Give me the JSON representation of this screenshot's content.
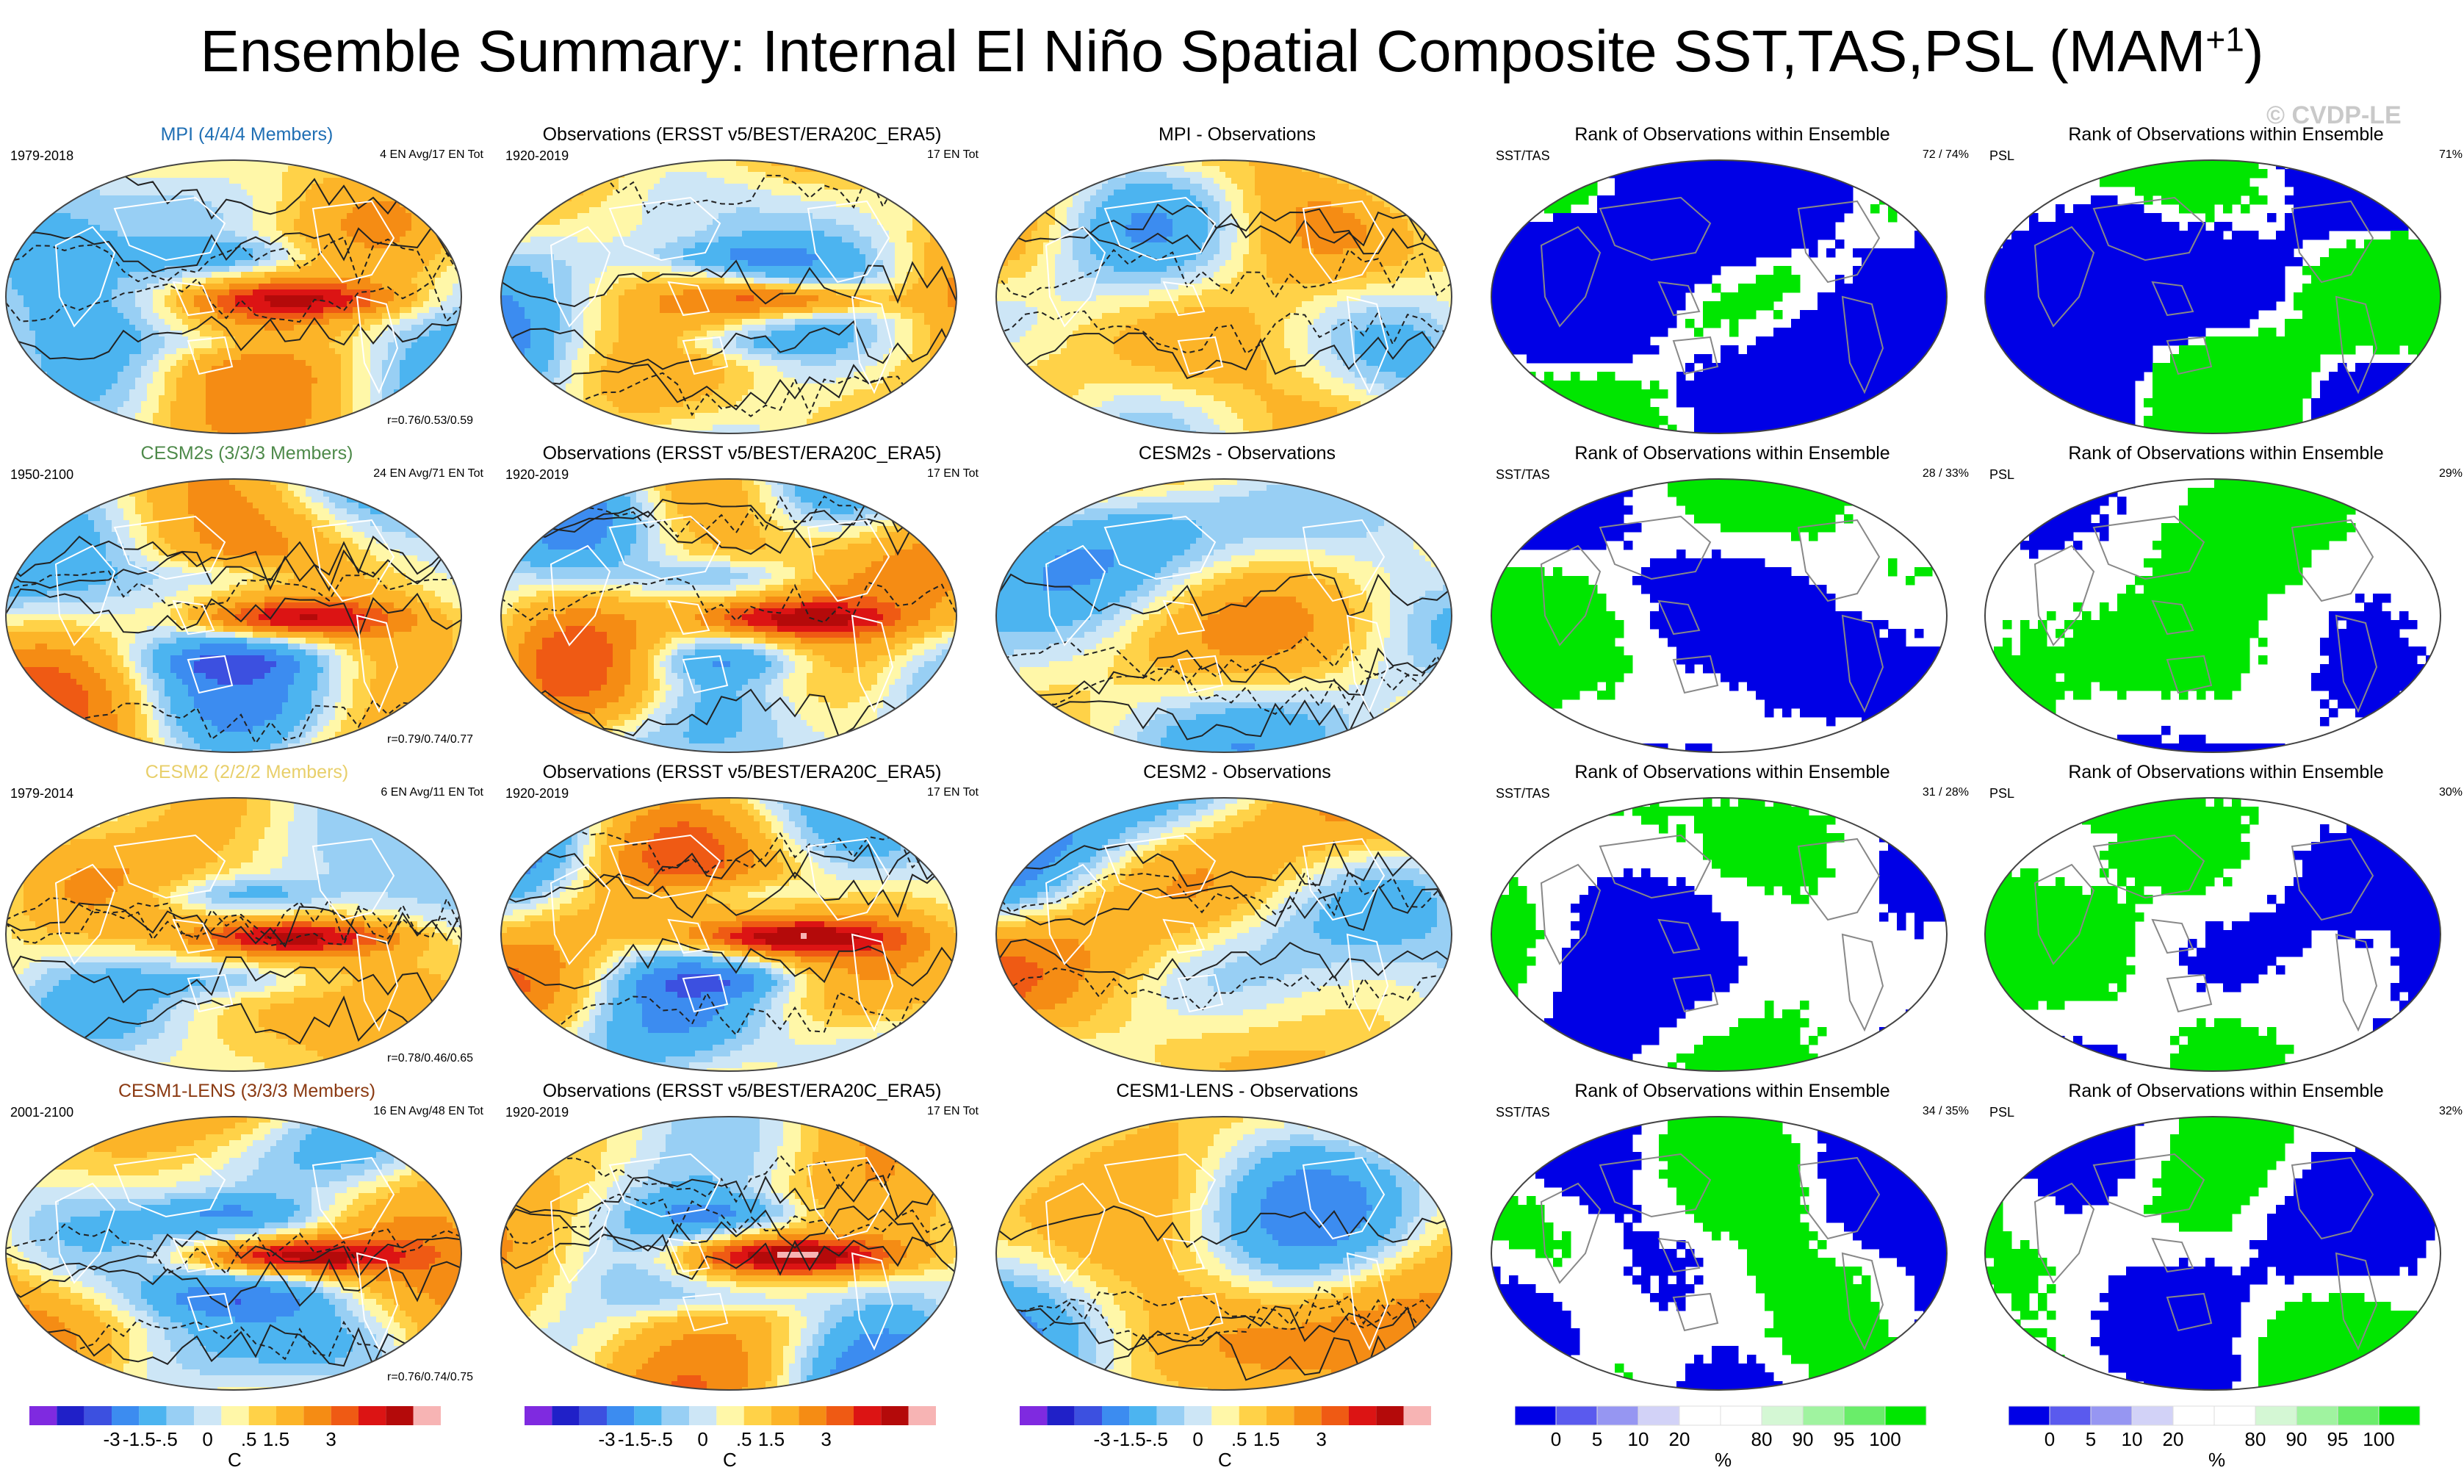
{
  "page": {
    "title_main": "Ensemble Summary: Internal El Niño Spatial Composite SST,TAS,PSL (MAM",
    "title_sup": "+1",
    "title_end": ")",
    "watermark": "© CVDP-LE"
  },
  "colors": {
    "diverging": [
      "#7f2ae0",
      "#2020c8",
      "#3c50e0",
      "#3c8cf0",
      "#4cb4f0",
      "#98cff4",
      "#cde6f6",
      "#fff7a8",
      "#ffd248",
      "#fcb428",
      "#f58c14",
      "#ef5a14",
      "#dc1414",
      "#b40a0a",
      "#f7b4b4"
    ],
    "rank": [
      "#0000e6",
      "#5a5aee",
      "#9696f2",
      "#d2d2f7",
      "#ffffff",
      "#ffffff",
      "#d4f7d4",
      "#a0f3a0",
      "#6aed6a",
      "#00e600"
    ],
    "rank_blue": "#0000e6",
    "rank_green": "#00e600",
    "land_outline": "#555555",
    "contour": "#222222"
  },
  "colorbars": {
    "diverging": {
      "labels": [
        "-3",
        "-1.5",
        "-.5",
        "0",
        ".5",
        "1.5",
        "3"
      ],
      "unit": "C"
    },
    "rank": {
      "labels": [
        "0",
        "5",
        "10",
        "20",
        "80",
        "90",
        "95",
        "100"
      ],
      "unit": "%"
    }
  },
  "rows": [
    {
      "model": {
        "title": "MPI (4/4/4 Members)",
        "title_color": "#1f6fb4",
        "years": "1979-2018",
        "count": "4 EN Avg/17 EN Tot",
        "r": "r=0.76/0.53/0.59"
      },
      "obs": {
        "title": "Observations (ERSST v5/BEST/ERA20C_ERA5)",
        "years": "1920-2019",
        "count": "17 EN Tot"
      },
      "diff": {
        "title": "MPI - Observations"
      },
      "rank_sst": {
        "title": "Rank of Observations within Ensemble",
        "var": "SST/TAS",
        "pct": "72 /  74%"
      },
      "rank_psl": {
        "title": "Rank of Observations within Ensemble",
        "var": "PSL",
        "pct": "71%"
      }
    },
    {
      "model": {
        "title": "CESM2s (3/3/3 Members)",
        "title_color": "#4e8a4a",
        "years": "1950-2100",
        "count": "24 EN Avg/71 EN Tot",
        "r": "r=0.79/0.74/0.77"
      },
      "obs": {
        "title": "Observations (ERSST v5/BEST/ERA20C_ERA5)",
        "years": "1920-2019",
        "count": "17 EN Tot"
      },
      "diff": {
        "title": "CESM2s - Observations"
      },
      "rank_sst": {
        "title": "Rank of Observations within Ensemble",
        "var": "SST/TAS",
        "pct": "28 /  33%"
      },
      "rank_psl": {
        "title": "Rank of Observations within Ensemble",
        "var": "PSL",
        "pct": "29%"
      }
    },
    {
      "model": {
        "title": "CESM2 (2/2/2 Members)",
        "title_color": "#e8cf6a",
        "years": "1979-2014",
        "count": "6 EN Avg/11 EN Tot",
        "r": "r=0.78/0.46/0.65"
      },
      "obs": {
        "title": "Observations (ERSST v5/BEST/ERA20C_ERA5)",
        "years": "1920-2019",
        "count": "17 EN Tot"
      },
      "diff": {
        "title": "CESM2 - Observations"
      },
      "rank_sst": {
        "title": "Rank of Observations within Ensemble",
        "var": "SST/TAS",
        "pct": "31 /  28%"
      },
      "rank_psl": {
        "title": "Rank of Observations within Ensemble",
        "var": "PSL",
        "pct": "30%"
      }
    },
    {
      "model": {
        "title": "CESM1-LENS (3/3/3 Members)",
        "title_color": "#8b3a12",
        "years": "2001-2100",
        "count": "16 EN Avg/48 EN Tot",
        "r": "r=0.76/0.74/0.75"
      },
      "obs": {
        "title": "Observations (ERSST v5/BEST/ERA20C_ERA5)",
        "years": "1920-2019",
        "count": "17 EN Tot"
      },
      "diff": {
        "title": "CESM1-LENS - Observations"
      },
      "rank_sst": {
        "title": "Rank of Observations within Ensemble",
        "var": "SST/TAS",
        "pct": "34 /  35%"
      },
      "rank_psl": {
        "title": "Rank of Observations within Ensemble",
        "var": "PSL",
        "pct": "32%"
      }
    }
  ],
  "chart_data": {
    "type": "heatmap",
    "title": "Ensemble Summary: Internal El Niño Spatial Composite SST,TAS,PSL (MAM+1)",
    "layout": "4 rows x 5 columns of global maps",
    "columns": [
      "Model composite (C)",
      "Observations (C)",
      "Model - Observations (C)",
      "Rank SST/TAS (%)",
      "Rank PSL (%)"
    ],
    "diverging_levels": [
      -3,
      -2,
      -1.5,
      -1,
      -0.5,
      -0.25,
      0,
      0.25,
      0.5,
      1,
      1.5,
      2,
      3
    ],
    "rank_levels": [
      0,
      5,
      10,
      20,
      80,
      90,
      95,
      100
    ],
    "pattern_correlations_sst_tas_psl": {
      "MPI": [
        0.76,
        0.53,
        0.59
      ],
      "CESM2s": [
        0.79,
        0.74,
        0.77
      ],
      "CESM2": [
        0.78,
        0.46,
        0.65
      ],
      "CESM1-LENS": [
        0.76,
        0.74,
        0.75
      ]
    },
    "rank_sst_tas_pct": {
      "MPI": [
        72,
        74
      ],
      "CESM2s": [
        28,
        33
      ],
      "CESM2": [
        31,
        28
      ],
      "CESM1-LENS": [
        34,
        35
      ]
    },
    "rank_psl_pct": {
      "MPI": 71,
      "CESM2s": 29,
      "CESM2": 30,
      "CESM1-LENS": 32
    }
  }
}
